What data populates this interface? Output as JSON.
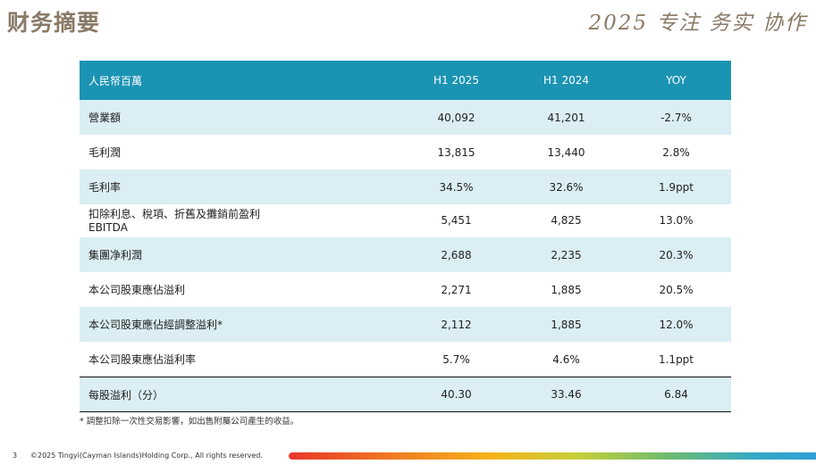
{
  "header": {
    "title": "财务摘要",
    "slogan": "2025 专注 务实 协作"
  },
  "table": {
    "columns": [
      "人民帑百萬",
      "H1 2025",
      "H1 2024",
      "YOY"
    ],
    "rows": [
      {
        "label": "營業額",
        "label2": "",
        "h1_2025": "40,092",
        "h1_2024": "41,201",
        "yoy": "-2.7%"
      },
      {
        "label": "毛利潤",
        "label2": "",
        "h1_2025": "13,815",
        "h1_2024": "13,440",
        "yoy": "2.8%"
      },
      {
        "label": "毛利率",
        "label2": "",
        "h1_2025": "34.5%",
        "h1_2024": "32.6%",
        "yoy": "1.9ppt"
      },
      {
        "label": "扣除利息、稅項、折舊及攤銷前盈利",
        "label2": "EBITDA",
        "h1_2025": "5,451",
        "h1_2024": "4,825",
        "yoy": "13.0%"
      },
      {
        "label": "集團净利潤",
        "label2": "",
        "h1_2025": "2,688",
        "h1_2024": "2,235",
        "yoy": "20.3%"
      },
      {
        "label": "本公司股東應佔溢利",
        "label2": "",
        "h1_2025": "2,271",
        "h1_2024": "1,885",
        "yoy": "20.5%"
      },
      {
        "label": "本公司股東應佔經調整溢利*",
        "label2": "",
        "h1_2025": "2,112",
        "h1_2024": "1,885",
        "yoy": "12.0%"
      },
      {
        "label": "本公司股東應佔溢利率",
        "label2": "",
        "h1_2025": "5.7%",
        "h1_2024": "4.6%",
        "yoy": "1.1ppt"
      },
      {
        "label": "每股溢利（分）",
        "label2": "",
        "h1_2025": "40.30",
        "h1_2024": "33.46",
        "yoy": "6.84"
      }
    ]
  },
  "footnote": "* 調整扣除一次性交易影響，如出售附屬公司產生的收益。",
  "footer": {
    "page_number": "3",
    "copyright": "©2025 Tingyi(Cayman Islands)Holding Corp., All rights reserved."
  }
}
